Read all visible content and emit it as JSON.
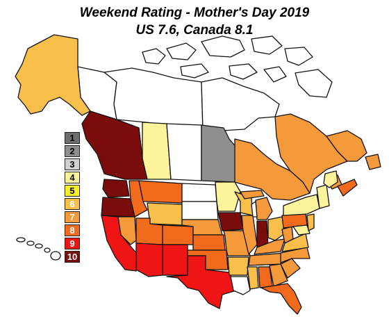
{
  "title": "Weekend Rating - Mother's Day 2019",
  "subtitle": "US 7.6, Canada 8.1",
  "legend": [
    {
      "label": "1",
      "color": "#6f6f6f",
      "text_color": "#000000"
    },
    {
      "label": "2",
      "color": "#8e8e8e",
      "text_color": "#000000"
    },
    {
      "label": "3",
      "color": "#d0d0d0",
      "text_color": "#000000"
    },
    {
      "label": "4",
      "color": "#fdf39a",
      "text_color": "#000000"
    },
    {
      "label": "5",
      "color": "#f7f02a",
      "text_color": "#000000"
    },
    {
      "label": "6",
      "color": "#f8c04a",
      "text_color": "#ffffff"
    },
    {
      "label": "7",
      "color": "#f59a3a",
      "text_color": "#ffffff"
    },
    {
      "label": "8",
      "color": "#f26a1b",
      "text_color": "#ffffff"
    },
    {
      "label": "9",
      "color": "#ef1515",
      "text_color": "#ffffff"
    },
    {
      "label": "10",
      "color": "#7a0c0c",
      "text_color": "#ffffff"
    }
  ],
  "regions": {
    "alaska": 6,
    "yukon": null,
    "northwest-territories": null,
    "nunavut": null,
    "british-columbia": 10,
    "alberta": 4,
    "saskatchewan": null,
    "manitoba": 2,
    "ontario": 7,
    "quebec": 7,
    "newfoundland": 7,
    "new-brunswick": 7,
    "nova-scotia": 8,
    "washington": 10,
    "oregon": 10,
    "california": 9,
    "idaho": 8,
    "nevada": 7,
    "montana": 8,
    "wyoming": 6,
    "utah": 8,
    "arizona": 9,
    "colorado": 8,
    "new-mexico": 9,
    "north-dakota": null,
    "south-dakota": null,
    "nebraska": 7,
    "kansas": 8,
    "oklahoma": 8,
    "texas": 9,
    "minnesota": 4,
    "iowa": 10,
    "missouri": 7,
    "arkansas": 6,
    "louisiana": null,
    "wisconsin": 6,
    "illinois": 7,
    "michigan": 7,
    "indiana": 10,
    "ohio": 6,
    "kentucky": 7,
    "tennessee": 7,
    "mississippi": 6,
    "alabama": 8,
    "georgia": 7,
    "florida": 8,
    "south-carolina": 7,
    "north-carolina": 7,
    "virginia": 6,
    "west-virginia": 7,
    "pennsylvania": 8,
    "new-york": 4,
    "new-england": 4,
    "maine": 4,
    "new-jersey": 6,
    "maryland": 4,
    "hawaii": null
  }
}
